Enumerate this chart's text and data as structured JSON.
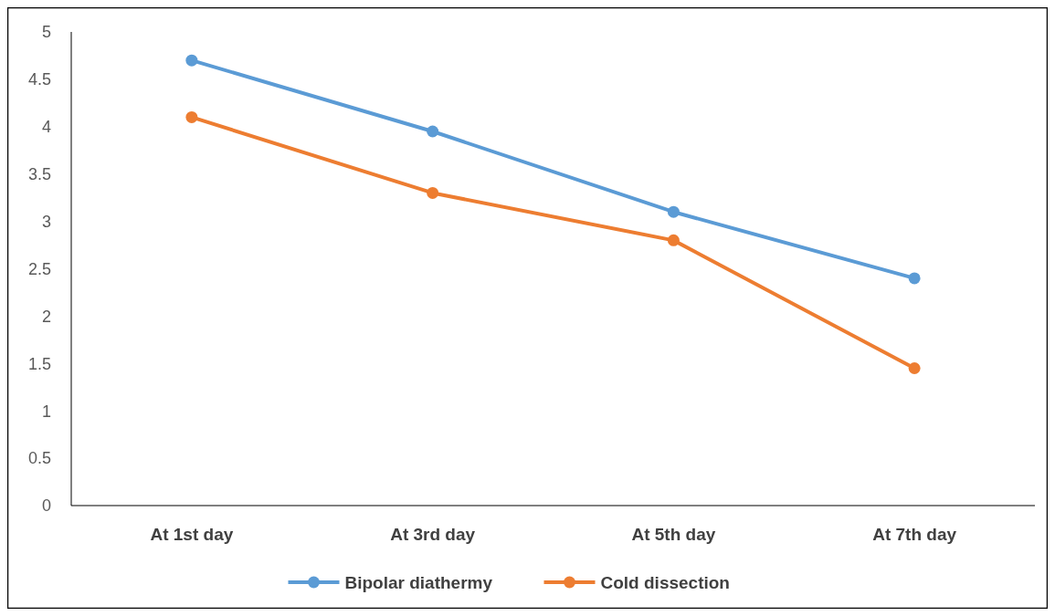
{
  "chart_data": {
    "type": "line",
    "categories": [
      "At 1st day",
      "At 3rd day",
      "At 5th day",
      "At 7th day"
    ],
    "series": [
      {
        "name": "Bipolar diathermy",
        "color": "#5b9bd5",
        "values": [
          4.7,
          3.95,
          3.1,
          2.4
        ]
      },
      {
        "name": "Cold dissection",
        "color": "#ed7d31",
        "values": [
          4.1,
          3.3,
          2.8,
          1.45
        ]
      }
    ],
    "ylim": [
      0,
      5
    ],
    "yticks": [
      0,
      0.5,
      1,
      1.5,
      2,
      2.5,
      3,
      3.5,
      4,
      4.5,
      5
    ],
    "grid": false,
    "legend": "bottom",
    "marker": "circle",
    "line_style": "solid"
  }
}
